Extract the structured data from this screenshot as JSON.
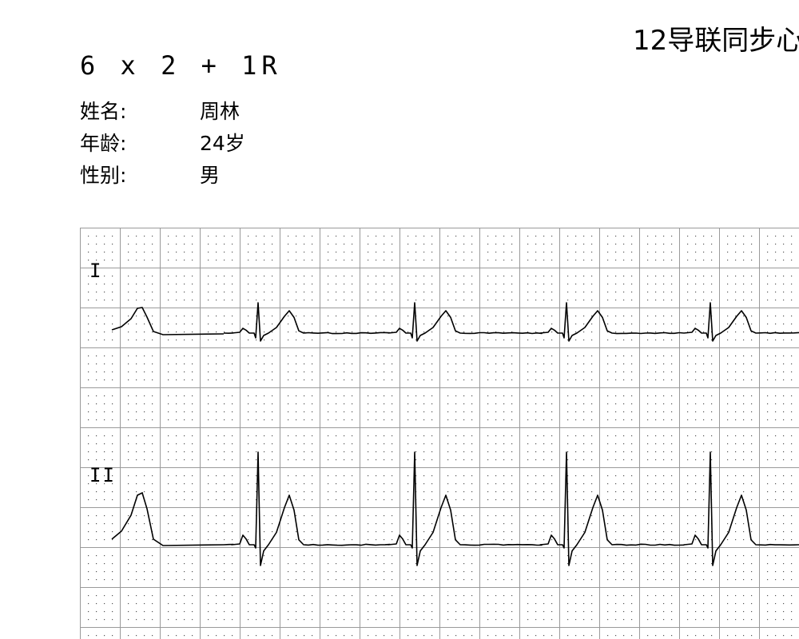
{
  "report": {
    "title": "12导联同步心",
    "layout": "6 x 2 + 1R"
  },
  "patient": [
    {
      "label": "姓名:",
      "value": "周林"
    },
    {
      "label": "年龄:",
      "value": "24岁"
    },
    {
      "label": "性别:",
      "value": "男"
    }
  ],
  "ecg": {
    "leads": [
      {
        "name": "I"
      },
      {
        "name": "II"
      }
    ],
    "colors": {
      "grid_major": "#9a9a9a",
      "grid_dot": "#555555",
      "trace": "#000000"
    }
  }
}
